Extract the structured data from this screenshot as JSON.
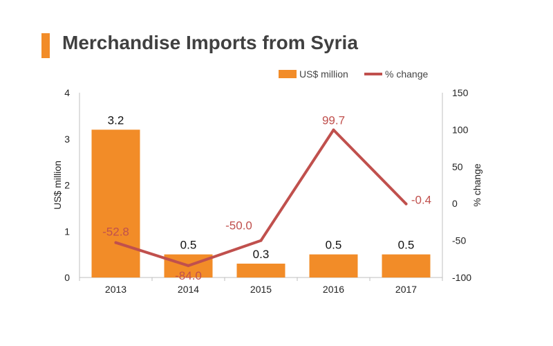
{
  "header": {
    "title": "Merchandise Imports from Syria"
  },
  "colors": {
    "accent": "#f28c28",
    "bar": "#f28c28",
    "line": "#c0504d",
    "axis": "#bfbfbf"
  },
  "chart_data": {
    "type": "bar",
    "title": "Merchandise Imports from Syria",
    "categories": [
      "2013",
      "2014",
      "2015",
      "2016",
      "2017"
    ],
    "series": [
      {
        "name": "US$ million",
        "type": "bar",
        "axis": "left",
        "values": [
          3.2,
          0.5,
          0.3,
          0.5,
          0.5
        ],
        "labels": [
          "3.2",
          "0.5",
          "0.3",
          "0.5",
          "0.5"
        ]
      },
      {
        "name": "% change",
        "type": "line",
        "axis": "right",
        "values": [
          -52.8,
          -84.0,
          -50.0,
          99.7,
          -0.4
        ],
        "labels": [
          "-52.8",
          "-84.0",
          "-50.0",
          "99.7",
          "-0.4"
        ]
      }
    ],
    "ylabel_left": "US$ million",
    "ylabel_right": "% change",
    "ylim_left": [
      0,
      4
    ],
    "yticks_left": [
      "0",
      "1",
      "2",
      "3",
      "4"
    ],
    "ylim_right": [
      -100,
      150
    ],
    "yticks_right": [
      "-100",
      "-50",
      "0",
      "50",
      "100",
      "150"
    ],
    "legend_position": "top-right",
    "grid": false
  }
}
